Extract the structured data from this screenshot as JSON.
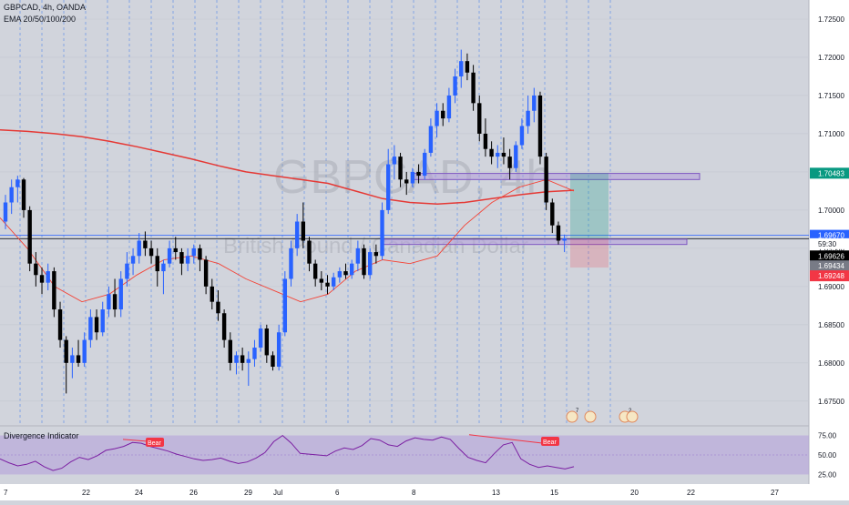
{
  "header": {
    "symbol_line": "GBPCAD, 4h, OANDA",
    "indicator_line": "EMA 20/50/100/200"
  },
  "watermark": {
    "main": "GBPCAD, 4h",
    "sub": "British Pound / Canadian Dollar"
  },
  "price_axis": {
    "ticks": [
      "1.72500",
      "1.72000",
      "1.71500",
      "1.71000",
      "1.70500",
      "1.70000",
      "1.69500",
      "1.69000",
      "1.68500",
      "1.68000",
      "1.67500"
    ],
    "badges": [
      {
        "label": "1.70483",
        "value": 1.70483,
        "color": "#089981",
        "text_color": "#ffffff"
      },
      {
        "label": "1.69670",
        "value": 1.6967,
        "color": "#2962ff",
        "text_color": "#ffffff"
      },
      {
        "label": "59:30",
        "value": 1.6956,
        "color": "#ffffff",
        "text_color": "#131722"
      },
      {
        "label": "1.69626",
        "value": 1.694,
        "color": "#000000",
        "text_color": "#ffffff"
      },
      {
        "label": "1.69434",
        "value": 1.6927,
        "color": "#787b86",
        "text_color": "#ffffff"
      },
      {
        "label": "1.69248",
        "value": 1.6914,
        "color": "#f23645",
        "text_color": "#ffffff"
      }
    ]
  },
  "time_axis": {
    "labels": [
      "7",
      "22",
      "24",
      "26",
      "29",
      "Jul",
      "6",
      "8",
      "13",
      "15",
      "20",
      "22",
      "27"
    ]
  },
  "events": [
    {
      "label": "7"
    },
    {
      "label": ""
    },
    {
      "label": "2"
    },
    {
      "label": ""
    }
  ],
  "divergence": {
    "title": "Divergence Indicator",
    "ticks": [
      "75.00",
      "50.00",
      "25.00"
    ],
    "bear_labels": [
      "Bear",
      "Bear"
    ]
  },
  "colors": {
    "bull": "#2962ff",
    "bear": "#000000",
    "ema_dark": "#e53935",
    "ema_light": "#f44336",
    "zone": "#b39ddb",
    "rsi_line": "#7b1fa2",
    "divergence_line": "#f23645"
  },
  "chart_data": {
    "type": "candlestick",
    "symbol": "GBPCAD",
    "timeframe": "4h",
    "ylim": [
      1.672,
      1.7275
    ],
    "candles": [
      {
        "o": 1.6985,
        "h": 1.702,
        "l": 1.6975,
        "c": 1.701
      },
      {
        "o": 1.701,
        "h": 1.704,
        "l": 1.6995,
        "c": 1.703
      },
      {
        "o": 1.703,
        "h": 1.7045,
        "l": 1.701,
        "c": 1.704
      },
      {
        "o": 1.704,
        "h": 1.7042,
        "l": 1.699,
        "c": 1.7
      },
      {
        "o": 1.7,
        "h": 1.7005,
        "l": 1.692,
        "c": 1.693
      },
      {
        "o": 1.693,
        "h": 1.6945,
        "l": 1.69,
        "c": 1.6915
      },
      {
        "o": 1.6915,
        "h": 1.6925,
        "l": 1.689,
        "c": 1.6905
      },
      {
        "o": 1.6905,
        "h": 1.693,
        "l": 1.6895,
        "c": 1.692
      },
      {
        "o": 1.692,
        "h": 1.6925,
        "l": 1.686,
        "c": 1.687
      },
      {
        "o": 1.687,
        "h": 1.688,
        "l": 1.682,
        "c": 1.683
      },
      {
        "o": 1.683,
        "h": 1.6835,
        "l": 1.676,
        "c": 1.68
      },
      {
        "o": 1.68,
        "h": 1.682,
        "l": 1.678,
        "c": 1.681
      },
      {
        "o": 1.681,
        "h": 1.683,
        "l": 1.6795,
        "c": 1.68
      },
      {
        "o": 1.68,
        "h": 1.684,
        "l": 1.6795,
        "c": 1.683
      },
      {
        "o": 1.683,
        "h": 1.687,
        "l": 1.682,
        "c": 1.686
      },
      {
        "o": 1.686,
        "h": 1.687,
        "l": 1.683,
        "c": 1.684
      },
      {
        "o": 1.684,
        "h": 1.688,
        "l": 1.6835,
        "c": 1.687
      },
      {
        "o": 1.687,
        "h": 1.69,
        "l": 1.686,
        "c": 1.689
      },
      {
        "o": 1.689,
        "h": 1.691,
        "l": 1.686,
        "c": 1.687
      },
      {
        "o": 1.687,
        "h": 1.692,
        "l": 1.686,
        "c": 1.691
      },
      {
        "o": 1.691,
        "h": 1.6945,
        "l": 1.69,
        "c": 1.693
      },
      {
        "o": 1.693,
        "h": 1.695,
        "l": 1.6915,
        "c": 1.694
      },
      {
        "o": 1.694,
        "h": 1.697,
        "l": 1.693,
        "c": 1.696
      },
      {
        "o": 1.696,
        "h": 1.6972,
        "l": 1.694,
        "c": 1.695
      },
      {
        "o": 1.695,
        "h": 1.696,
        "l": 1.693,
        "c": 1.694
      },
      {
        "o": 1.694,
        "h": 1.695,
        "l": 1.69,
        "c": 1.692
      },
      {
        "o": 1.692,
        "h": 1.6935,
        "l": 1.689,
        "c": 1.693
      },
      {
        "o": 1.693,
        "h": 1.696,
        "l": 1.6925,
        "c": 1.695
      },
      {
        "o": 1.695,
        "h": 1.6965,
        "l": 1.6935,
        "c": 1.6945
      },
      {
        "o": 1.6945,
        "h": 1.695,
        "l": 1.6915,
        "c": 1.693
      },
      {
        "o": 1.693,
        "h": 1.695,
        "l": 1.692,
        "c": 1.694
      },
      {
        "o": 1.694,
        "h": 1.6955,
        "l": 1.693,
        "c": 1.695
      },
      {
        "o": 1.695,
        "h": 1.6955,
        "l": 1.692,
        "c": 1.6935
      },
      {
        "o": 1.6935,
        "h": 1.694,
        "l": 1.689,
        "c": 1.69
      },
      {
        "o": 1.69,
        "h": 1.691,
        "l": 1.687,
        "c": 1.688
      },
      {
        "o": 1.688,
        "h": 1.6895,
        "l": 1.6855,
        "c": 1.6865
      },
      {
        "o": 1.6865,
        "h": 1.687,
        "l": 1.682,
        "c": 1.683
      },
      {
        "o": 1.683,
        "h": 1.684,
        "l": 1.679,
        "c": 1.68
      },
      {
        "o": 1.68,
        "h": 1.6815,
        "l": 1.6785,
        "c": 1.681
      },
      {
        "o": 1.681,
        "h": 1.682,
        "l": 1.679,
        "c": 1.68
      },
      {
        "o": 1.68,
        "h": 1.6815,
        "l": 1.677,
        "c": 1.6805
      },
      {
        "o": 1.6805,
        "h": 1.683,
        "l": 1.6795,
        "c": 1.682
      },
      {
        "o": 1.682,
        "h": 1.685,
        "l": 1.6815,
        "c": 1.6845
      },
      {
        "o": 1.6845,
        "h": 1.685,
        "l": 1.68,
        "c": 1.681
      },
      {
        "o": 1.681,
        "h": 1.6815,
        "l": 1.679,
        "c": 1.6795
      },
      {
        "o": 1.6795,
        "h": 1.685,
        "l": 1.679,
        "c": 1.684
      },
      {
        "o": 1.684,
        "h": 1.692,
        "l": 1.6835,
        "c": 1.691
      },
      {
        "o": 1.691,
        "h": 1.696,
        "l": 1.69,
        "c": 1.695
      },
      {
        "o": 1.695,
        "h": 1.6995,
        "l": 1.694,
        "c": 1.6985
      },
      {
        "o": 1.6985,
        "h": 1.701,
        "l": 1.695,
        "c": 1.696
      },
      {
        "o": 1.696,
        "h": 1.6965,
        "l": 1.692,
        "c": 1.693
      },
      {
        "o": 1.693,
        "h": 1.6935,
        "l": 1.69,
        "c": 1.691
      },
      {
        "o": 1.691,
        "h": 1.692,
        "l": 1.6895,
        "c": 1.6905
      },
      {
        "o": 1.6905,
        "h": 1.6915,
        "l": 1.689,
        "c": 1.69
      },
      {
        "o": 1.69,
        "h": 1.6918,
        "l": 1.6895,
        "c": 1.6912
      },
      {
        "o": 1.6912,
        "h": 1.6925,
        "l": 1.6905,
        "c": 1.692
      },
      {
        "o": 1.692,
        "h": 1.693,
        "l": 1.691,
        "c": 1.6915
      },
      {
        "o": 1.6915,
        "h": 1.6935,
        "l": 1.691,
        "c": 1.693
      },
      {
        "o": 1.693,
        "h": 1.696,
        "l": 1.692,
        "c": 1.695
      },
      {
        "o": 1.695,
        "h": 1.6955,
        "l": 1.691,
        "c": 1.6915
      },
      {
        "o": 1.6915,
        "h": 1.695,
        "l": 1.691,
        "c": 1.6945
      },
      {
        "o": 1.6945,
        "h": 1.6955,
        "l": 1.693,
        "c": 1.694
      },
      {
        "o": 1.694,
        "h": 1.701,
        "l": 1.6935,
        "c": 1.7
      },
      {
        "o": 1.7,
        "h": 1.708,
        "l": 1.6995,
        "c": 1.706
      },
      {
        "o": 1.706,
        "h": 1.7085,
        "l": 1.704,
        "c": 1.707
      },
      {
        "o": 1.707,
        "h": 1.7075,
        "l": 1.703,
        "c": 1.704
      },
      {
        "o": 1.704,
        "h": 1.705,
        "l": 1.702,
        "c": 1.7035
      },
      {
        "o": 1.7035,
        "h": 1.7055,
        "l": 1.703,
        "c": 1.705
      },
      {
        "o": 1.705,
        "h": 1.706,
        "l": 1.7035,
        "c": 1.7045
      },
      {
        "o": 1.7045,
        "h": 1.708,
        "l": 1.704,
        "c": 1.7075
      },
      {
        "o": 1.7075,
        "h": 1.712,
        "l": 1.707,
        "c": 1.711
      },
      {
        "o": 1.711,
        "h": 1.714,
        "l": 1.7095,
        "c": 1.713
      },
      {
        "o": 1.713,
        "h": 1.714,
        "l": 1.711,
        "c": 1.712
      },
      {
        "o": 1.712,
        "h": 1.716,
        "l": 1.7115,
        "c": 1.715
      },
      {
        "o": 1.715,
        "h": 1.7185,
        "l": 1.714,
        "c": 1.7175
      },
      {
        "o": 1.7175,
        "h": 1.721,
        "l": 1.716,
        "c": 1.7195
      },
      {
        "o": 1.7195,
        "h": 1.7205,
        "l": 1.717,
        "c": 1.718
      },
      {
        "o": 1.718,
        "h": 1.719,
        "l": 1.713,
        "c": 1.714
      },
      {
        "o": 1.714,
        "h": 1.715,
        "l": 1.709,
        "c": 1.71
      },
      {
        "o": 1.71,
        "h": 1.712,
        "l": 1.707,
        "c": 1.708
      },
      {
        "o": 1.708,
        "h": 1.709,
        "l": 1.706,
        "c": 1.707
      },
      {
        "o": 1.707,
        "h": 1.7085,
        "l": 1.7055,
        "c": 1.7075
      },
      {
        "o": 1.7075,
        "h": 1.7095,
        "l": 1.706,
        "c": 1.707
      },
      {
        "o": 1.707,
        "h": 1.708,
        "l": 1.704,
        "c": 1.7055
      },
      {
        "o": 1.7055,
        "h": 1.709,
        "l": 1.705,
        "c": 1.7085
      },
      {
        "o": 1.7085,
        "h": 1.712,
        "l": 1.708,
        "c": 1.711
      },
      {
        "o": 1.711,
        "h": 1.715,
        "l": 1.71,
        "c": 1.713
      },
      {
        "o": 1.713,
        "h": 1.716,
        "l": 1.7115,
        "c": 1.715
      },
      {
        "o": 1.715,
        "h": 1.7155,
        "l": 1.706,
        "c": 1.707
      },
      {
        "o": 1.707,
        "h": 1.7075,
        "l": 1.7,
        "c": 1.701
      },
      {
        "o": 1.701,
        "h": 1.7015,
        "l": 1.697,
        "c": 1.698
      },
      {
        "o": 1.698,
        "h": 1.6985,
        "l": 1.6955,
        "c": 1.696
      },
      {
        "o": 1.696,
        "h": 1.6968,
        "l": 1.6945,
        "c": 1.6963
      }
    ],
    "ema_slow": [
      1.7105,
      1.7103,
      1.71,
      1.7096,
      1.709,
      1.7083,
      1.7075,
      1.7067,
      1.7058,
      1.705,
      1.7045,
      1.704,
      1.7035,
      1.7025,
      1.7015,
      1.701,
      1.7008,
      1.701,
      1.7015,
      1.702,
      1.7024,
      1.7026
    ],
    "ema_fast": [
      1.699,
      1.695,
      1.69,
      1.688,
      1.689,
      1.6915,
      1.6935,
      1.694,
      1.693,
      1.691,
      1.6895,
      1.688,
      1.689,
      1.692,
      1.6935,
      1.693,
      1.694,
      1.698,
      1.701,
      1.703,
      1.704,
      1.7025
    ],
    "zones": [
      {
        "top": 1.7048,
        "bottom": 1.704
      },
      {
        "top": 1.6962,
        "bottom": 1.6955
      }
    ],
    "position": {
      "entry": 1.69626,
      "target": 1.70483,
      "stop": 1.69248
    },
    "horizontal_lines": [
      1.6967,
      1.69626
    ],
    "rsi": {
      "ylim": [
        15,
        85
      ],
      "values": [
        45,
        40,
        36,
        38,
        42,
        35,
        30,
        33,
        41,
        47,
        44,
        49,
        56,
        58,
        61,
        66,
        65,
        61,
        58,
        55,
        51,
        48,
        45,
        43,
        44,
        46,
        42,
        39,
        41,
        46,
        53,
        67,
        75,
        65,
        52,
        51,
        50,
        49,
        55,
        59,
        57,
        62,
        71,
        69,
        63,
        61,
        68,
        72,
        70,
        69,
        73,
        70,
        58,
        47,
        43,
        40,
        52,
        63,
        66,
        45,
        38,
        34,
        36,
        34,
        32,
        35
      ]
    }
  }
}
